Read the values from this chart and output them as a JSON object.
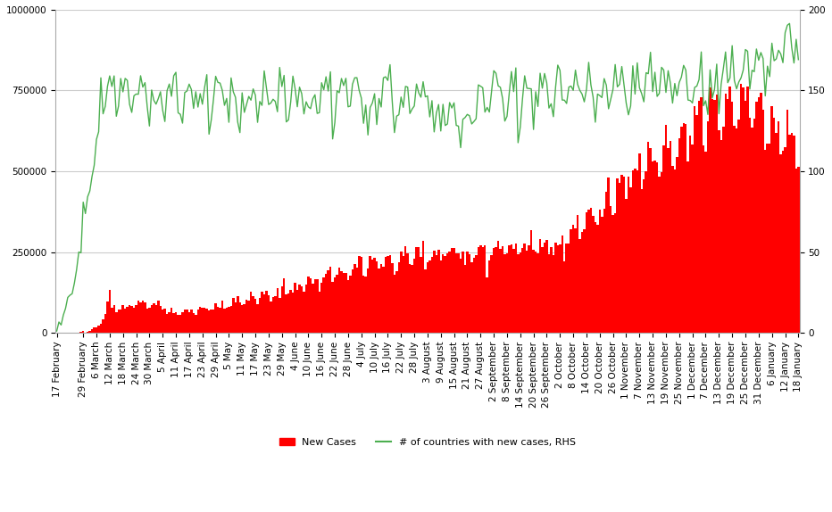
{
  "background_color": "#ffffff",
  "bar_color": "#ff0000",
  "line_color": "#4caf50",
  "left_ylim": [
    0,
    1000000
  ],
  "right_ylim": [
    0,
    200
  ],
  "left_yticks": [
    0,
    250000,
    500000,
    750000,
    1000000
  ],
  "right_yticks": [
    0,
    50,
    100,
    150,
    200
  ],
  "legend_items": [
    "New Cases",
    "# of countries with new cases, RHS"
  ],
  "tick_label_fontsize": 7.5,
  "grid_color": "#cccccc",
  "x_labels": [
    "17 February",
    "29 February",
    "6 March",
    "12 March",
    "18 March",
    "24 March",
    "30 March",
    "5 April",
    "11 April",
    "17 April",
    "23 April",
    "29 April",
    "5 May",
    "11 May",
    "17 May",
    "23 May",
    "29 May",
    "4 June",
    "10 June",
    "16 June",
    "22 June",
    "28 June",
    "4 July",
    "10 July",
    "16 July",
    "22 July",
    "28 July",
    "3 August",
    "9 August",
    "15 August",
    "21 August",
    "27 August",
    "2 September",
    "8 September",
    "14 September",
    "20 September",
    "26 September",
    "2 October",
    "8 October",
    "14 October",
    "20 October",
    "26 October",
    "1 November",
    "7 November",
    "13 November",
    "19 November",
    "25 November",
    "1 December",
    "7 December",
    "13 December",
    "19 December",
    "25 December",
    "31 December",
    "6 January",
    "12 January",
    "18 January"
  ]
}
